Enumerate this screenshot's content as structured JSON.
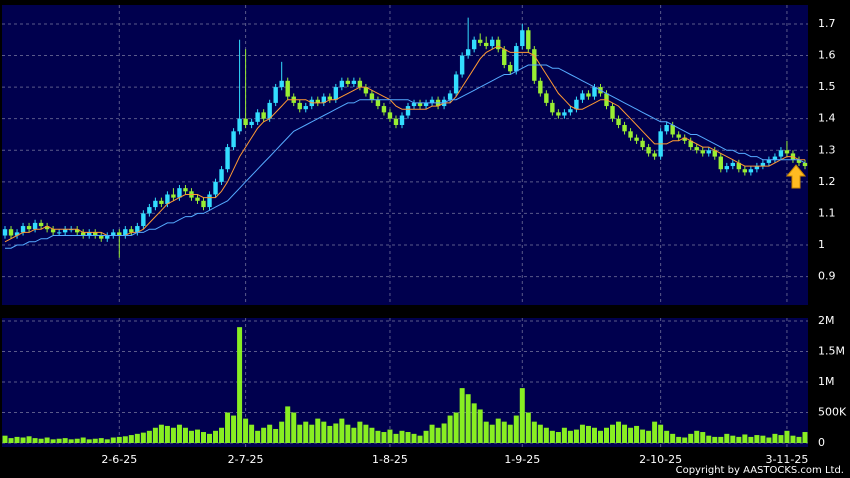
{
  "chart_data": [
    {
      "type": "candlestick",
      "categories": [
        null,
        null,
        null,
        null,
        null,
        null,
        null,
        null,
        null,
        null,
        null,
        null,
        null,
        null,
        null,
        null,
        null,
        null,
        null,
        "2-6-25",
        null,
        null,
        null,
        null,
        null,
        null,
        null,
        null,
        null,
        null,
        null,
        null,
        null,
        null,
        null,
        null,
        null,
        null,
        null,
        null,
        "2-7-25",
        null,
        null,
        null,
        null,
        null,
        null,
        null,
        null,
        null,
        null,
        null,
        null,
        null,
        null,
        null,
        null,
        null,
        null,
        null,
        null,
        null,
        null,
        null,
        "1-8-25",
        null,
        null,
        null,
        null,
        null,
        null,
        null,
        null,
        null,
        null,
        null,
        null,
        null,
        null,
        null,
        null,
        null,
        null,
        null,
        null,
        null,
        "1-9-25",
        null,
        null,
        null,
        null,
        null,
        null,
        null,
        null,
        null,
        null,
        null,
        null,
        null,
        null,
        null,
        null,
        null,
        null,
        null,
        null,
        null,
        null,
        "2-10-25",
        null,
        null,
        null,
        null,
        null,
        null,
        null,
        null,
        null,
        null,
        null,
        null,
        null,
        null,
        null,
        null,
        null,
        null,
        null,
        null,
        "3-11-25",
        null,
        null,
        null
      ],
      "open": [
        1.03,
        1.05,
        1.03,
        1.04,
        1.06,
        1.05,
        1.07,
        1.06,
        1.05,
        1.04,
        1.04,
        1.05,
        1.05,
        1.04,
        1.03,
        1.04,
        1.03,
        1.02,
        1.03,
        1.04,
        1.03,
        1.05,
        1.04,
        1.06,
        1.1,
        1.12,
        1.14,
        1.13,
        1.16,
        1.15,
        1.18,
        1.17,
        1.15,
        1.14,
        1.12,
        1.16,
        1.2,
        1.24,
        1.31,
        1.36,
        1.4,
        1.38,
        1.39,
        1.42,
        1.4,
        1.45,
        1.5,
        1.52,
        1.47,
        1.45,
        1.43,
        1.44,
        1.46,
        1.45,
        1.47,
        1.46,
        1.5,
        1.52,
        1.51,
        1.52,
        1.5,
        1.48,
        1.46,
        1.44,
        1.42,
        1.4,
        1.38,
        1.41,
        1.44,
        1.45,
        1.44,
        1.45,
        1.46,
        1.44,
        1.46,
        1.48,
        1.54,
        1.6,
        1.62,
        1.65,
        1.64,
        1.63,
        1.65,
        1.62,
        1.57,
        1.55,
        1.63,
        1.68,
        1.62,
        1.52,
        1.48,
        1.45,
        1.42,
        1.41,
        1.42,
        1.43,
        1.46,
        1.48,
        1.47,
        1.5,
        1.48,
        1.44,
        1.4,
        1.38,
        1.36,
        1.34,
        1.33,
        1.31,
        1.29,
        1.28,
        1.36,
        1.38,
        1.35,
        1.34,
        1.33,
        1.31,
        1.3,
        1.29,
        1.3,
        1.28,
        1.24,
        1.25,
        1.26,
        1.24,
        1.23,
        1.24,
        1.25,
        1.26,
        1.27,
        1.28,
        1.3,
        1.29,
        1.27,
        1.26
      ],
      "high": [
        1.06,
        1.06,
        1.05,
        1.07,
        1.07,
        1.08,
        1.08,
        1.07,
        1.06,
        1.05,
        1.06,
        1.06,
        1.06,
        1.05,
        1.05,
        1.05,
        1.04,
        1.04,
        1.05,
        1.05,
        1.06,
        1.06,
        1.07,
        1.11,
        1.13,
        1.15,
        1.15,
        1.17,
        1.18,
        1.19,
        1.19,
        1.18,
        1.16,
        1.15,
        1.17,
        1.21,
        1.25,
        1.32,
        1.37,
        1.65,
        1.62,
        1.4,
        1.43,
        1.43,
        1.46,
        1.51,
        1.58,
        1.53,
        1.48,
        1.46,
        1.45,
        1.47,
        1.47,
        1.48,
        1.48,
        1.51,
        1.53,
        1.53,
        1.53,
        1.53,
        1.51,
        1.49,
        1.47,
        1.45,
        1.43,
        1.41,
        1.42,
        1.45,
        1.46,
        1.46,
        1.46,
        1.47,
        1.47,
        1.47,
        1.49,
        1.55,
        1.61,
        1.72,
        1.66,
        1.67,
        1.66,
        1.66,
        1.66,
        1.63,
        1.58,
        1.64,
        1.7,
        1.69,
        1.63,
        1.53,
        1.49,
        1.46,
        1.43,
        1.43,
        1.44,
        1.47,
        1.49,
        1.49,
        1.51,
        1.51,
        1.49,
        1.45,
        1.41,
        1.39,
        1.37,
        1.35,
        1.34,
        1.32,
        1.3,
        1.37,
        1.39,
        1.39,
        1.36,
        1.35,
        1.34,
        1.32,
        1.31,
        1.31,
        1.31,
        1.29,
        1.26,
        1.27,
        1.27,
        1.25,
        1.25,
        1.26,
        1.27,
        1.28,
        1.29,
        1.31,
        1.33,
        1.3,
        1.28,
        1.27
      ],
      "low": [
        1.02,
        1.02,
        1.02,
        1.03,
        1.04,
        1.04,
        1.05,
        1.04,
        1.03,
        1.03,
        1.03,
        1.04,
        1.03,
        1.02,
        1.02,
        1.02,
        1.01,
        1.01,
        1.02,
        0.96,
        1.02,
        1.03,
        1.03,
        1.05,
        1.09,
        1.11,
        1.12,
        1.12,
        1.14,
        1.14,
        1.16,
        1.14,
        1.13,
        1.11,
        1.11,
        1.15,
        1.19,
        1.23,
        1.3,
        1.35,
        1.37,
        1.37,
        1.38,
        1.39,
        1.39,
        1.44,
        1.49,
        1.46,
        1.44,
        1.42,
        1.42,
        1.43,
        1.44,
        1.44,
        1.45,
        1.45,
        1.49,
        1.5,
        1.5,
        1.49,
        1.47,
        1.45,
        1.43,
        1.41,
        1.39,
        1.37,
        1.37,
        1.4,
        1.43,
        1.43,
        1.43,
        1.44,
        1.43,
        1.43,
        1.45,
        1.47,
        1.53,
        1.59,
        1.61,
        1.63,
        1.62,
        1.62,
        1.61,
        1.56,
        1.54,
        1.54,
        1.62,
        1.61,
        1.51,
        1.47,
        1.44,
        1.41,
        1.4,
        1.4,
        1.41,
        1.42,
        1.45,
        1.46,
        1.46,
        1.47,
        1.43,
        1.39,
        1.37,
        1.35,
        1.33,
        1.32,
        1.3,
        1.28,
        1.27,
        1.27,
        1.35,
        1.34,
        1.33,
        1.32,
        1.3,
        1.29,
        1.28,
        1.28,
        1.27,
        1.23,
        1.23,
        1.24,
        1.23,
        1.22,
        1.22,
        1.23,
        1.24,
        1.25,
        1.26,
        1.27,
        1.28,
        1.26,
        1.25,
        1.24
      ],
      "close": [
        1.05,
        1.03,
        1.04,
        1.06,
        1.05,
        1.07,
        1.06,
        1.05,
        1.04,
        1.04,
        1.05,
        1.05,
        1.04,
        1.03,
        1.04,
        1.03,
        1.02,
        1.03,
        1.04,
        1.03,
        1.05,
        1.04,
        1.06,
        1.1,
        1.12,
        1.14,
        1.13,
        1.16,
        1.15,
        1.18,
        1.17,
        1.15,
        1.14,
        1.12,
        1.16,
        1.2,
        1.24,
        1.31,
        1.36,
        1.4,
        1.38,
        1.39,
        1.42,
        1.4,
        1.45,
        1.5,
        1.52,
        1.47,
        1.45,
        1.43,
        1.44,
        1.46,
        1.45,
        1.47,
        1.46,
        1.5,
        1.52,
        1.51,
        1.52,
        1.5,
        1.48,
        1.46,
        1.44,
        1.42,
        1.4,
        1.38,
        1.41,
        1.44,
        1.45,
        1.44,
        1.45,
        1.46,
        1.44,
        1.46,
        1.48,
        1.54,
        1.6,
        1.62,
        1.65,
        1.64,
        1.63,
        1.65,
        1.62,
        1.57,
        1.55,
        1.63,
        1.68,
        1.62,
        1.52,
        1.48,
        1.45,
        1.42,
        1.41,
        1.42,
        1.43,
        1.46,
        1.48,
        1.47,
        1.5,
        1.48,
        1.44,
        1.4,
        1.38,
        1.36,
        1.34,
        1.33,
        1.31,
        1.29,
        1.28,
        1.36,
        1.38,
        1.35,
        1.34,
        1.33,
        1.31,
        1.3,
        1.29,
        1.3,
        1.28,
        1.24,
        1.25,
        1.26,
        1.24,
        1.23,
        1.24,
        1.25,
        1.26,
        1.27,
        1.28,
        1.3,
        1.29,
        1.27,
        1.26,
        1.25
      ],
      "up_color": "#33ddff",
      "down_color": "#99ee33",
      "series": [
        {
          "color": "#ff9933",
          "values": [
            1.01,
            1.02,
            1.03,
            1.04,
            1.04,
            1.05,
            1.05,
            1.06,
            1.05,
            1.05,
            1.05,
            1.05,
            1.05,
            1.04,
            1.04,
            1.04,
            1.04,
            1.03,
            1.03,
            1.03,
            1.03,
            1.04,
            1.04,
            1.05,
            1.07,
            1.09,
            1.11,
            1.13,
            1.14,
            1.15,
            1.16,
            1.16,
            1.16,
            1.15,
            1.15,
            1.15,
            1.17,
            1.2,
            1.24,
            1.28,
            1.31,
            1.34,
            1.37,
            1.39,
            1.4,
            1.42,
            1.44,
            1.46,
            1.46,
            1.46,
            1.46,
            1.45,
            1.45,
            1.45,
            1.46,
            1.46,
            1.47,
            1.48,
            1.49,
            1.5,
            1.5,
            1.49,
            1.48,
            1.47,
            1.46,
            1.44,
            1.43,
            1.43,
            1.43,
            1.43,
            1.43,
            1.44,
            1.44,
            1.45,
            1.45,
            1.47,
            1.5,
            1.53,
            1.56,
            1.59,
            1.61,
            1.62,
            1.63,
            1.62,
            1.61,
            1.61,
            1.61,
            1.61,
            1.6,
            1.57,
            1.54,
            1.51,
            1.48,
            1.46,
            1.44,
            1.43,
            1.43,
            1.44,
            1.45,
            1.46,
            1.46,
            1.45,
            1.44,
            1.42,
            1.4,
            1.38,
            1.36,
            1.34,
            1.32,
            1.32,
            1.32,
            1.33,
            1.33,
            1.34,
            1.33,
            1.32,
            1.31,
            1.31,
            1.3,
            1.29,
            1.28,
            1.27,
            1.26,
            1.25,
            1.25,
            1.25,
            1.25,
            1.25,
            1.26,
            1.27,
            1.28,
            1.28,
            1.27,
            1.27
          ]
        },
        {
          "color": "#55aaff",
          "values": [
            0.99,
            0.99,
            1.0,
            1.0,
            1.01,
            1.01,
            1.02,
            1.02,
            1.03,
            1.03,
            1.03,
            1.03,
            1.03,
            1.03,
            1.03,
            1.03,
            1.03,
            1.03,
            1.03,
            1.03,
            1.03,
            1.03,
            1.04,
            1.04,
            1.05,
            1.05,
            1.06,
            1.07,
            1.07,
            1.08,
            1.09,
            1.09,
            1.1,
            1.1,
            1.11,
            1.12,
            1.13,
            1.14,
            1.16,
            1.18,
            1.2,
            1.22,
            1.24,
            1.26,
            1.28,
            1.3,
            1.32,
            1.34,
            1.36,
            1.37,
            1.38,
            1.39,
            1.4,
            1.41,
            1.42,
            1.43,
            1.44,
            1.45,
            1.45,
            1.46,
            1.46,
            1.46,
            1.46,
            1.46,
            1.46,
            1.46,
            1.46,
            1.46,
            1.45,
            1.45,
            1.45,
            1.45,
            1.45,
            1.45,
            1.46,
            1.46,
            1.47,
            1.48,
            1.49,
            1.5,
            1.51,
            1.52,
            1.53,
            1.54,
            1.54,
            1.55,
            1.56,
            1.57,
            1.57,
            1.57,
            1.57,
            1.56,
            1.56,
            1.55,
            1.54,
            1.53,
            1.52,
            1.51,
            1.5,
            1.49,
            1.48,
            1.47,
            1.46,
            1.45,
            1.44,
            1.43,
            1.42,
            1.41,
            1.4,
            1.39,
            1.39,
            1.38,
            1.37,
            1.36,
            1.35,
            1.35,
            1.34,
            1.33,
            1.32,
            1.31,
            1.3,
            1.3,
            1.29,
            1.29,
            1.28,
            1.28,
            1.27,
            1.27,
            1.27,
            1.27,
            1.27,
            1.27,
            1.27,
            1.26
          ]
        }
      ],
      "ylim": [
        0.81,
        1.76
      ],
      "yticks": [
        0.9,
        1,
        1.1,
        1.2,
        1.3,
        1.4,
        1.5,
        1.6,
        1.7
      ],
      "grid": true
    },
    {
      "type": "bar",
      "color": "#88ee22",
      "values": [
        120000,
        80000,
        100000,
        90000,
        110000,
        80000,
        70000,
        90000,
        60000,
        70000,
        80000,
        60000,
        70000,
        90000,
        60000,
        70000,
        80000,
        60000,
        90000,
        100000,
        110000,
        130000,
        150000,
        170000,
        200000,
        250000,
        300000,
        280000,
        250000,
        300000,
        250000,
        200000,
        220000,
        180000,
        150000,
        200000,
        250000,
        500000,
        450000,
        1900000,
        400000,
        300000,
        200000,
        250000,
        300000,
        230000,
        350000,
        600000,
        500000,
        300000,
        350000,
        300000,
        400000,
        350000,
        280000,
        320000,
        400000,
        300000,
        250000,
        350000,
        300000,
        250000,
        200000,
        180000,
        220000,
        150000,
        200000,
        180000,
        150000,
        120000,
        200000,
        300000,
        250000,
        320000,
        450000,
        500000,
        900000,
        800000,
        650000,
        550000,
        350000,
        300000,
        400000,
        350000,
        300000,
        450000,
        900000,
        500000,
        350000,
        300000,
        250000,
        200000,
        180000,
        250000,
        200000,
        220000,
        300000,
        280000,
        250000,
        200000,
        250000,
        300000,
        350000,
        300000,
        250000,
        280000,
        220000,
        200000,
        350000,
        300000,
        200000,
        150000,
        100000,
        90000,
        150000,
        200000,
        180000,
        120000,
        100000,
        100000,
        150000,
        120000,
        100000,
        140000,
        100000,
        130000,
        120000,
        90000,
        150000,
        130000,
        200000,
        120000,
        100000,
        180000
      ],
      "ylim": [
        0,
        2050000
      ],
      "yticks": [
        0,
        {
          "value": 500000,
          "label": "500K"
        },
        {
          "value": 1000000,
          "label": "1M"
        },
        {
          "value": 1500000,
          "label": "1.5M"
        },
        {
          "value": 2000000,
          "label": "2M"
        }
      ],
      "grid": true
    }
  ],
  "footer": "Copyright by AASTOCKS.com Ltd."
}
